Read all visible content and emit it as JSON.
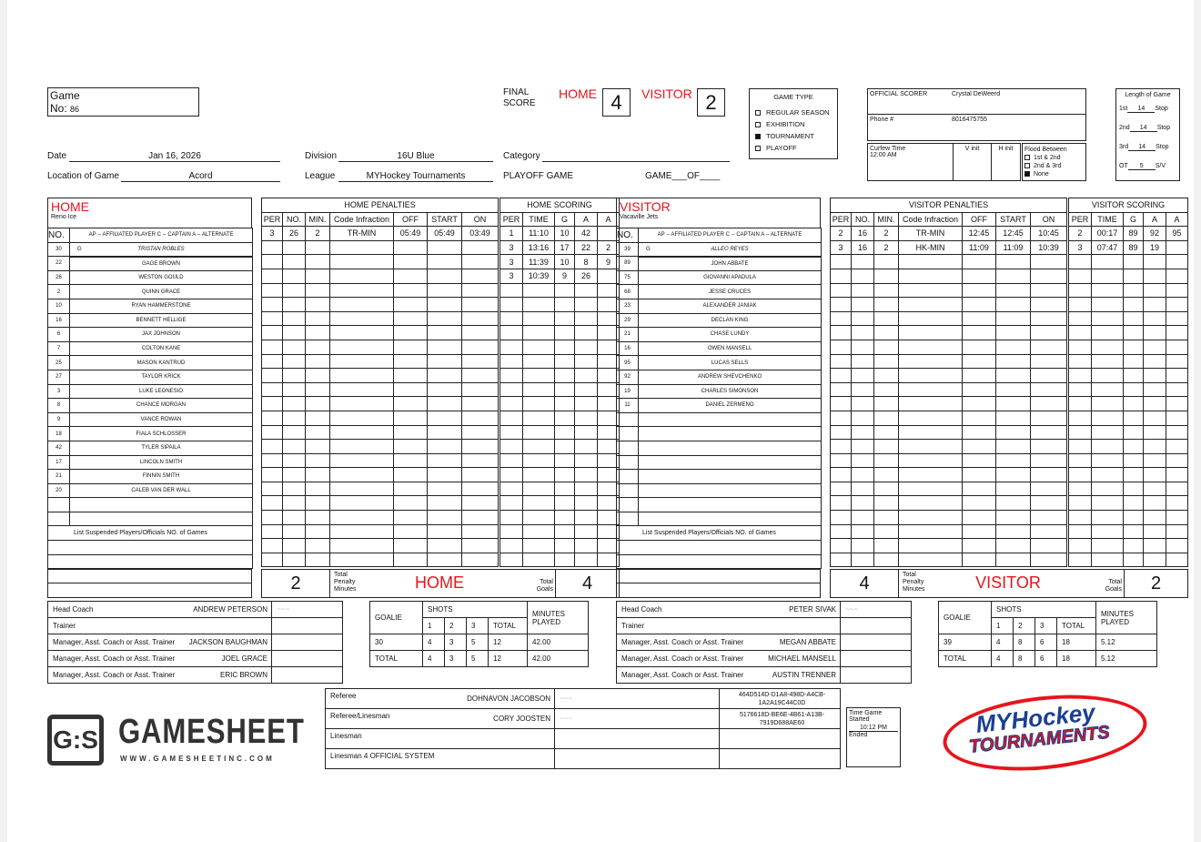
{
  "header": {
    "game_label": "Game",
    "no_label": "No:",
    "game_no": "86",
    "final_label_1": "FINAL",
    "final_label_2": "SCORE",
    "home_label": "HOME",
    "visitor_label": "VISITOR",
    "home_score": "4",
    "visitor_score": "2",
    "date_label": "Date",
    "date": "Jan 16, 2026",
    "division_label": "Division",
    "division": "16U Blue",
    "category_label": "Category",
    "category": "",
    "location_label": "Location of Game",
    "location": "Acord",
    "league_label": "League",
    "league": "MYHockey Tournaments",
    "playoff_label": "PLAYOFF GAME",
    "game_of_label_1": "GAME",
    "game_of_label_2": "OF"
  },
  "game_type": {
    "title": "GAME TYPE",
    "options": [
      {
        "label": "REGULAR SEASON",
        "checked": false
      },
      {
        "label": "EXHIBITION",
        "checked": false
      },
      {
        "label": "TOURNAMENT",
        "checked": true
      },
      {
        "label": "PLAYOFF",
        "checked": false
      }
    ]
  },
  "scorer": {
    "label": "OFFICIAL SCORER",
    "name": "Crystal DeWeerd",
    "phone_label": "Phone #",
    "phone": "8016475755",
    "curfew_label": "Curfew Time",
    "curfew": "12:00 AM",
    "v_init": "V init",
    "h_init": "H init",
    "flood_label": "Flood Between",
    "flood_options": [
      {
        "label": "1st & 2nd",
        "checked": false
      },
      {
        "label": "2nd & 3rd",
        "checked": false
      },
      {
        "label": "None",
        "checked": true
      }
    ]
  },
  "length": {
    "title": "Length of Game",
    "periods": [
      {
        "label": "1st",
        "value": "14",
        "suffix": "Stop"
      },
      {
        "label": "2nd",
        "value": "14",
        "suffix": "Stop"
      },
      {
        "label": "3rd",
        "value": "14",
        "suffix": "Stop"
      },
      {
        "label": "OT",
        "value": "5",
        "suffix": "S/V"
      }
    ]
  },
  "roster_legend": {
    "no": "NO.",
    "legend": "AP -- AFFILIATED PLAYER C -- CAPTAIN A -- ALTERNATE",
    "suspended": "List Suspended Players/Officials NO. of Games"
  },
  "pen_headers": [
    "PER",
    "NO.",
    "MIN.",
    "Code Infraction",
    "OFF",
    "START",
    "ON"
  ],
  "score_headers": [
    "PER",
    "TIME",
    "G",
    "A",
    "A"
  ],
  "totals_labels": {
    "pim_1": "Total",
    "pim_2": "Penalty",
    "pim_3": "Minutes",
    "goals_1": "Total",
    "goals_2": "Goals"
  },
  "home": {
    "label": "HOME",
    "team": "Reno Ice",
    "penalties_title": "HOME PENALTIES",
    "scoring_title": "HOME SCORING",
    "players": [
      [
        "30",
        "G",
        "TRISTAN ROBLES"
      ],
      [
        "22",
        "",
        "GAGE BROWN"
      ],
      [
        "26",
        "",
        "WESTON GOULD"
      ],
      [
        "2",
        "",
        "QUINN GRACE"
      ],
      [
        "10",
        "",
        "RYAN HAMMERSTONE"
      ],
      [
        "16",
        "",
        "BENNETT HELLIGE"
      ],
      [
        "6",
        "",
        "JAX JOHNSON"
      ],
      [
        "7",
        "",
        "COLTON KANE"
      ],
      [
        "25",
        "",
        "MASON KANTRUD"
      ],
      [
        "27",
        "",
        "TAYLOR KRICK"
      ],
      [
        "3",
        "",
        "LUKE LEONESIO"
      ],
      [
        "8",
        "",
        "CHANCE MORGAN"
      ],
      [
        "9",
        "",
        "VANCE ROWAN"
      ],
      [
        "18",
        "",
        "FIALA SCHLOSSER"
      ],
      [
        "42",
        "",
        "TYLER SIPAILA"
      ],
      [
        "17",
        "",
        "LINCOLN SMITH"
      ],
      [
        "21",
        "",
        "FINNIN SMITH"
      ],
      [
        "20",
        "",
        "CALEB VAN DER WALL"
      ]
    ],
    "penalties": [
      [
        "3",
        "26",
        "2",
        "TR-MIN",
        "05:49",
        "05:49",
        "03:49"
      ]
    ],
    "scoring": [
      [
        "1",
        "11:10",
        "10",
        "42",
        ""
      ],
      [
        "3",
        "13:16",
        "17",
        "22",
        "2"
      ],
      [
        "3",
        "11:39",
        "10",
        "8",
        "9"
      ],
      [
        "3",
        "10:39",
        "9",
        "26",
        ""
      ]
    ],
    "total_pim": "2",
    "total_goals": "4",
    "staff": [
      [
        "Head Coach",
        "ANDREW PETERSON"
      ],
      [
        "Trainer",
        ""
      ],
      [
        "Manager, Asst. Coach or Asst. Trainer",
        "JACKSON BAUGHMAN"
      ],
      [
        "Manager, Asst. Coach or Asst. Trainer",
        "JOEL GRACE"
      ],
      [
        "Manager, Asst. Coach or Asst. Trainer",
        "ERIC BROWN"
      ]
    ],
    "goalies": [
      [
        "30",
        "4",
        "3",
        "5",
        "12",
        "42.00"
      ],
      [
        "TOTAL",
        "4",
        "3",
        "5",
        "12",
        "42.00"
      ]
    ]
  },
  "visitor": {
    "label": "VISITOR",
    "team": "Vacaville Jets",
    "penalties_title": "VISITOR PENALTIES",
    "scoring_title": "VISITOR SCORING",
    "players": [
      [
        "39",
        "G",
        "ALLEO REYES"
      ],
      [
        "89",
        "",
        "JOHN ABBATE"
      ],
      [
        "75",
        "",
        "GIOVANNI APADULA"
      ],
      [
        "68",
        "",
        "JESSE CRUCES"
      ],
      [
        "23",
        "",
        "ALEXANDER JANIAK"
      ],
      [
        "29",
        "",
        "DECLAN KING"
      ],
      [
        "21",
        "",
        "CHASE LUNDY"
      ],
      [
        "16",
        "",
        "OWEN MANSELL"
      ],
      [
        "95",
        "",
        "LUCAS SELLS"
      ],
      [
        "92",
        "",
        "ANDREW SHEVCHENKO"
      ],
      [
        "19",
        "",
        "CHARLES SIMONSON"
      ],
      [
        "11",
        "",
        "DANIEL ZERMENO"
      ]
    ],
    "penalties": [
      [
        "2",
        "16",
        "2",
        "TR-MIN",
        "12:45",
        "12:45",
        "10:45"
      ],
      [
        "3",
        "16",
        "2",
        "HK-MIN",
        "11:09",
        "11:09",
        "10:39"
      ]
    ],
    "scoring": [
      [
        "2",
        "00:17",
        "89",
        "92",
        "95"
      ],
      [
        "3",
        "07:47",
        "89",
        "19",
        ""
      ]
    ],
    "total_pim": "4",
    "total_goals": "2",
    "staff": [
      [
        "Head Coach",
        "PETER SIVAK"
      ],
      [
        "Trainer",
        ""
      ],
      [
        "Manager, Asst. Coach or Asst. Trainer",
        "MEGAN ABBATE"
      ],
      [
        "Manager, Asst. Coach or Asst. Trainer",
        "MICHAEL MANSELL"
      ],
      [
        "Manager, Asst. Coach or Asst. Trainer",
        "AUSTIN TRENNER"
      ]
    ],
    "goalies": [
      [
        "39",
        "4",
        "8",
        "6",
        "18",
        "5.12"
      ],
      [
        "TOTAL",
        "4",
        "8",
        "6",
        "18",
        "5.12"
      ]
    ]
  },
  "goalie_headers": {
    "goalie": "GOALIE",
    "shots": "SHOTS",
    "p1": "1",
    "p2": "2",
    "p3": "3",
    "total": "TOTAL",
    "minutes": "MINUTES PLAYED"
  },
  "officials": [
    [
      "Referee",
      "DOHNAVON JACOBSON",
      "464D514D-D1A8-498D-A4CB-1A2A19C44C0D"
    ],
    [
      "Referee/Linesman",
      "CORY JOOSTEN",
      "5176618D-BE6E-4B61-A13B-7919D688AE60"
    ],
    [
      "Linesman",
      "",
      ""
    ],
    [
      "Linesman 4 OFFICIAL SYSTEM",
      "",
      ""
    ]
  ],
  "time_box": {
    "started_label": "Time Game Started",
    "started": "10:12 PM",
    "ended_label": "Ended"
  },
  "logos": {
    "gamesheet": "GAMESHEET",
    "gamesheet_url": "WWW.GAMESHEETINC.COM",
    "myhockey_1": "MYHockey",
    "myhockey_2": "TOURNAMENTS"
  }
}
